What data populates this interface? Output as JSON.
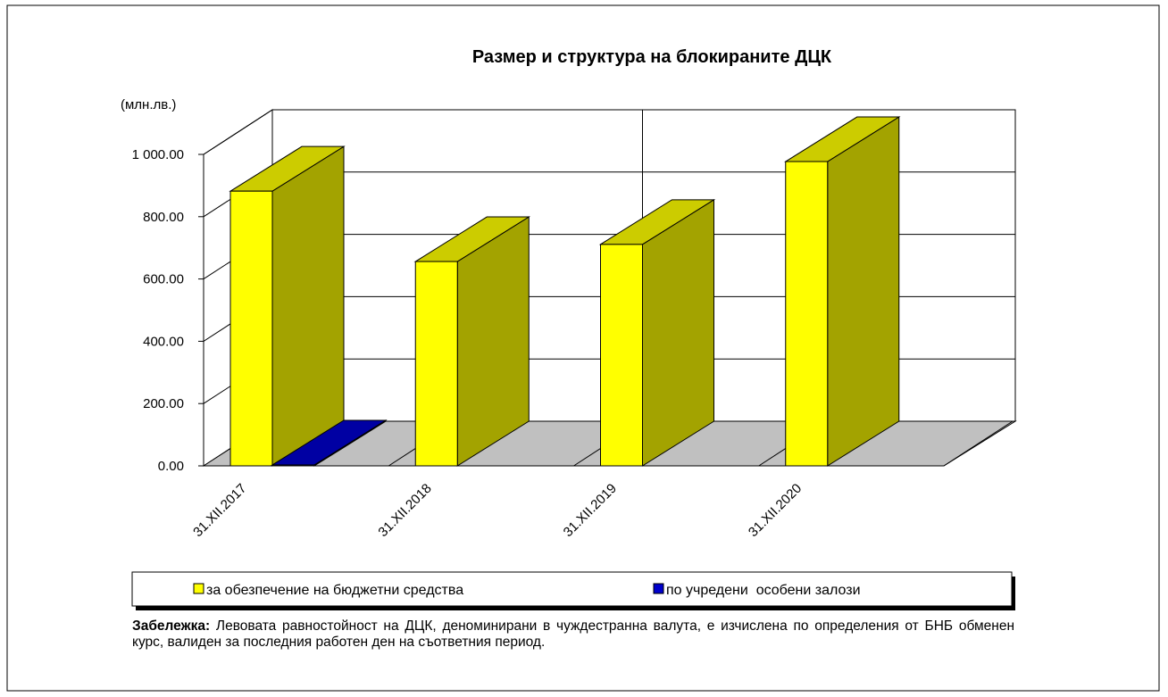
{
  "chart_data": {
    "type": "bar3d",
    "title": "Размер и структура на блокираните ДЦК",
    "unit_label": "(млн.лв.)",
    "categories": [
      "31.XII.2017",
      "31.XII.2018",
      "31.XII.2019",
      "31.XII.2020"
    ],
    "series": [
      {
        "name": "за обезпечение на бюджетни средства",
        "color": "#ffff00",
        "values": [
          882,
          656,
          711,
          977
        ]
      },
      {
        "name": "по учредени  особени залози",
        "color": "#0000cc",
        "values": [
          3,
          null,
          null,
          null
        ]
      }
    ],
    "ylim": [
      0,
      1000
    ],
    "yticks": [
      {
        "value": 0,
        "label": "0.00"
      },
      {
        "value": 200,
        "label": "200.00"
      },
      {
        "value": 400,
        "label": "400.00"
      },
      {
        "value": 600,
        "label": "600.00"
      },
      {
        "value": 800,
        "label": "800.00"
      },
      {
        "value": 1000,
        "label": "1 000.00"
      }
    ],
    "grid": true,
    "legend": "bottom"
  },
  "note": {
    "label": "Забележка:",
    "text": "Левовата равностойност на ДЦК, деноминирани в чуждестранна валута, е изчислена по определения от БНБ обменен курс, валиден за последния работен ден на съответния период."
  }
}
